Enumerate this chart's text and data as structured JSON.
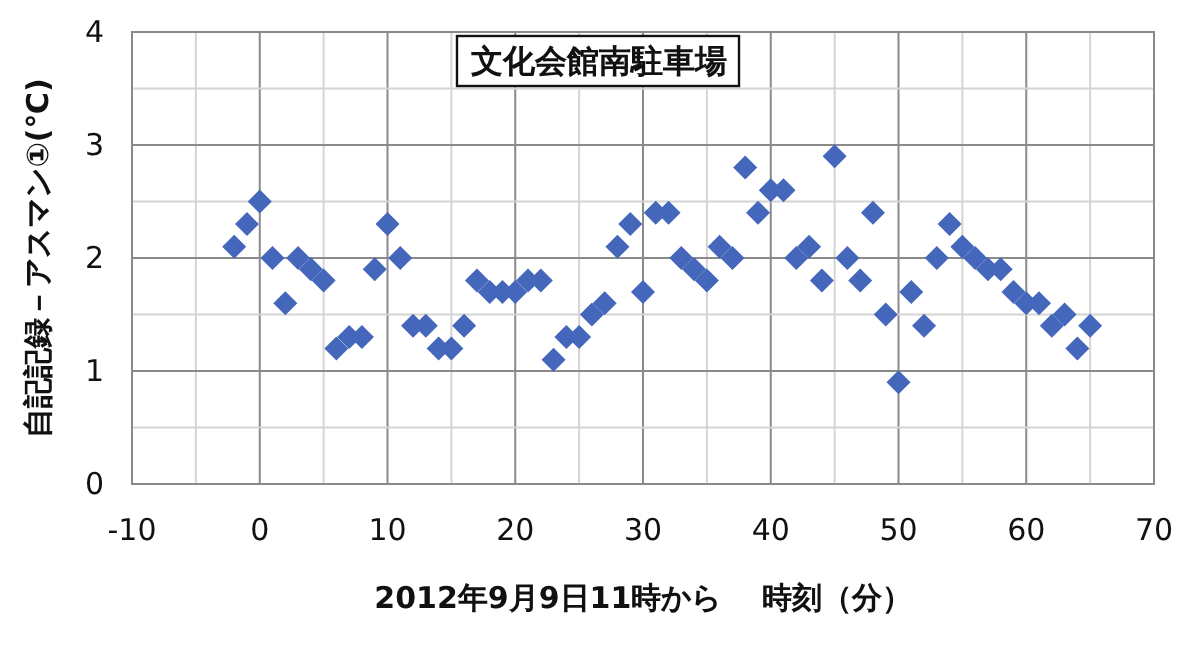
{
  "chart_data": {
    "type": "scatter",
    "title": "文化会館南駐車場",
    "xlabel": "2012年9月9日11時から　 時刻（分）",
    "ylabel": "自記記録－アスマン①(℃)",
    "x": [
      -2,
      -1,
      0,
      1,
      2,
      3,
      4,
      5,
      6,
      7,
      8,
      9,
      10,
      11,
      12,
      13,
      14,
      15,
      16,
      17,
      18,
      19,
      20,
      21,
      22,
      23,
      24,
      25,
      26,
      27,
      28,
      29,
      30,
      31,
      32,
      33,
      34,
      35,
      36,
      37,
      38,
      39,
      40,
      41,
      42,
      43,
      44,
      45,
      46,
      47,
      48,
      49,
      50,
      51,
      52,
      53,
      54,
      55,
      56,
      57,
      58,
      59,
      60,
      61,
      62,
      63,
      64,
      65
    ],
    "series": [
      {
        "color": "#4466bb",
        "values": [
          2.1,
          2.3,
          2.5,
          2.0,
          1.6,
          2.0,
          1.9,
          1.8,
          1.2,
          1.3,
          1.3,
          1.9,
          2.3,
          2.0,
          1.4,
          1.4,
          1.2,
          1.2,
          1.4,
          1.8,
          1.7,
          1.7,
          1.7,
          1.8,
          1.8,
          1.1,
          1.3,
          1.3,
          1.5,
          1.6,
          2.1,
          2.3,
          1.7,
          2.4,
          2.4,
          2.0,
          1.9,
          1.8,
          2.1,
          2.0,
          2.8,
          2.4,
          2.6,
          2.6,
          2.0,
          2.1,
          1.8,
          2.9,
          2.0,
          1.8,
          2.4,
          1.5,
          0.9,
          1.7,
          1.4,
          2.0,
          2.3,
          2.1,
          2.0,
          1.9,
          1.9,
          1.7,
          1.6,
          1.6,
          1.4,
          1.5,
          1.2,
          1.4
        ]
      }
    ],
    "marker": "diamond",
    "grid": true,
    "xlim": [
      -10,
      70
    ],
    "xticks": [
      -10,
      {
        "value": -5,
        "label": null
      },
      0,
      {
        "value": 5,
        "label": null
      },
      10,
      {
        "value": 15,
        "label": null
      },
      20,
      {
        "value": 25,
        "label": null
      },
      30,
      {
        "value": 35,
        "label": null
      },
      40,
      {
        "value": 45,
        "label": null
      },
      50,
      {
        "value": 55,
        "label": null
      },
      60,
      {
        "value": 65,
        "label": null
      },
      70
    ],
    "ylim": [
      0,
      4
    ],
    "yticks": [
      0,
      {
        "value": 0.5,
        "label": null
      },
      1,
      {
        "value": 1.5,
        "label": null
      },
      2,
      {
        "value": 2.5,
        "label": null
      },
      3,
      {
        "value": 3.5,
        "label": null
      },
      4
    ]
  }
}
